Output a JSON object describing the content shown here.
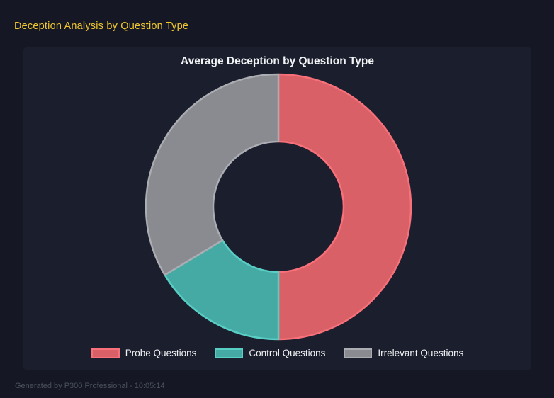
{
  "page": {
    "title": "Deception Analysis by Question Type",
    "footer": "Generated by P300 Professional - 10:05:14"
  },
  "chart_data": {
    "type": "doughnut",
    "title": "Average Deception by Question Type",
    "categories": [
      "Probe Questions",
      "Control Questions",
      "Irrelevant Questions"
    ],
    "values": [
      50.0,
      16.4,
      33.6
    ],
    "values_note": "percent share of ring, estimated from arc angles",
    "segments": [
      {
        "label": "Probe Questions",
        "value": 50.0,
        "fill": "#d96066",
        "border": "#f8707a"
      },
      {
        "label": "Control Questions",
        "value": 16.4,
        "fill": "#45aaa4",
        "border": "#59cec4"
      },
      {
        "label": "Irrelevant Questions",
        "value": 33.6,
        "fill": "#898b91",
        "border": "#abadb2"
      }
    ],
    "start_angle_deg": 0,
    "clockwise": true,
    "inner_radius_ratio": 0.49,
    "legend_position": "bottom",
    "colors": {
      "page_background": "#151824",
      "panel_background": "#1b1e2d",
      "header_accent": "#f1c72d",
      "title_text": "#f2f3f5",
      "footer_text": "#4c505e"
    }
  }
}
